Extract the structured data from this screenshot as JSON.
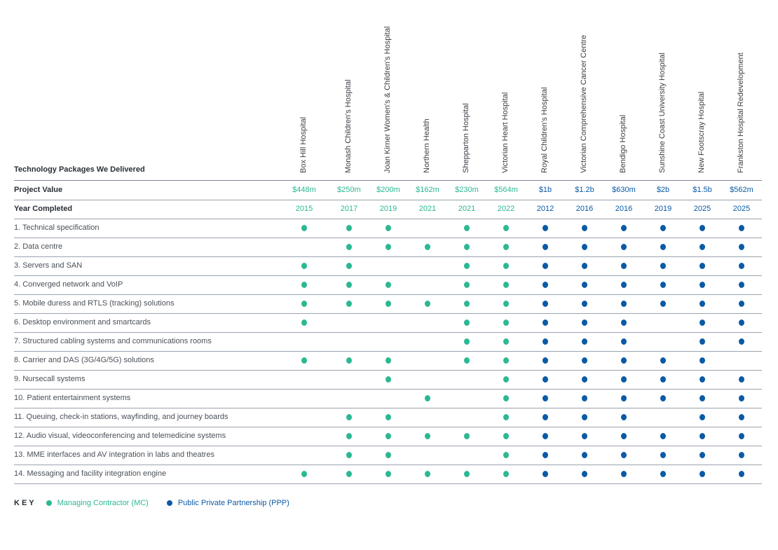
{
  "title": "Technology Packages We Delivered",
  "colors": {
    "mc": "#2bb893",
    "ppp": "#0a5aa6"
  },
  "projects": [
    {
      "name": "Box Hill Hospital",
      "value": "$448m",
      "year": "2015",
      "type": "mc"
    },
    {
      "name": "Monash Children's Hospital",
      "value": "$250m",
      "year": "2017",
      "type": "mc"
    },
    {
      "name": "Joan Kirner Women's & Children's Hospital",
      "value": "$200m",
      "year": "2019",
      "type": "mc"
    },
    {
      "name": "Northern Health",
      "value": "$162m",
      "year": "2021",
      "type": "mc"
    },
    {
      "name": "Shepparton Hospital",
      "value": "$230m",
      "year": "2021",
      "type": "mc"
    },
    {
      "name": "Victorian Heart Hospital",
      "value": "$564m",
      "year": "2022",
      "type": "mc"
    },
    {
      "name": "Royal Children's Hospital",
      "value": "$1b",
      "year": "2012",
      "type": "ppp"
    },
    {
      "name": "Victorian Comprehensive Cancer Centre",
      "value": "$1.2b",
      "year": "2016",
      "type": "ppp"
    },
    {
      "name": "Bendigo Hospital",
      "value": "$630m",
      "year": "2016",
      "type": "ppp"
    },
    {
      "name": "Sunshine Coast University Hospital",
      "value": "$2b",
      "year": "2019",
      "type": "ppp"
    },
    {
      "name": "New Footscray Hospital",
      "value": "$1.5b",
      "year": "2025",
      "type": "ppp"
    },
    {
      "name": "Frankston Hospital Redevelopment",
      "value": "$562m",
      "year": "2025",
      "type": "ppp"
    }
  ],
  "row_labels": {
    "value": "Project Value",
    "year": "Year Completed"
  },
  "packages": [
    {
      "label": "1. Technical specification",
      "delivered": [
        1,
        1,
        1,
        0,
        1,
        1,
        1,
        1,
        1,
        1,
        1,
        1
      ]
    },
    {
      "label": "2. Data centre",
      "delivered": [
        0,
        1,
        1,
        1,
        1,
        1,
        1,
        1,
        1,
        1,
        1,
        1
      ]
    },
    {
      "label": "3. Servers and SAN",
      "delivered": [
        1,
        1,
        0,
        0,
        1,
        1,
        1,
        1,
        1,
        1,
        1,
        1
      ]
    },
    {
      "label": "4. Converged network and VoIP",
      "delivered": [
        1,
        1,
        1,
        0,
        1,
        1,
        1,
        1,
        1,
        1,
        1,
        1
      ]
    },
    {
      "label": "5. Mobile duress and RTLS (tracking) solutions",
      "delivered": [
        1,
        1,
        1,
        1,
        1,
        1,
        1,
        1,
        1,
        1,
        1,
        1
      ]
    },
    {
      "label": "6. Desktop environment and smartcards",
      "delivered": [
        1,
        0,
        0,
        0,
        1,
        1,
        1,
        1,
        1,
        0,
        1,
        1
      ]
    },
    {
      "label": "7. Structured cabling systems and communications rooms",
      "delivered": [
        0,
        0,
        0,
        0,
        1,
        1,
        1,
        1,
        1,
        0,
        1,
        1
      ]
    },
    {
      "label": "8. Carrier and DAS (3G/4G/5G) solutions",
      "delivered": [
        1,
        1,
        1,
        0,
        1,
        1,
        1,
        1,
        1,
        1,
        1,
        0
      ]
    },
    {
      "label": "9. Nursecall systems",
      "delivered": [
        0,
        0,
        1,
        0,
        0,
        1,
        1,
        1,
        1,
        1,
        1,
        1
      ]
    },
    {
      "label": "10. Patient entertainment systems",
      "delivered": [
        0,
        0,
        0,
        1,
        0,
        1,
        1,
        1,
        1,
        1,
        1,
        1
      ]
    },
    {
      "label": "11. Queuing, check-in stations, wayfinding, and journey boards",
      "delivered": [
        0,
        1,
        1,
        0,
        0,
        1,
        1,
        1,
        1,
        0,
        1,
        1
      ]
    },
    {
      "label": "12. Audio visual, videoconferencing and telemedicine systems",
      "delivered": [
        0,
        1,
        1,
        1,
        1,
        1,
        1,
        1,
        1,
        1,
        1,
        1
      ]
    },
    {
      "label": "13. MME interfaces and AV integration in labs and theatres",
      "delivered": [
        0,
        1,
        1,
        0,
        0,
        1,
        1,
        1,
        1,
        1,
        1,
        1
      ]
    },
    {
      "label": "14. Messaging and facility integration engine",
      "delivered": [
        1,
        1,
        1,
        1,
        1,
        1,
        1,
        1,
        1,
        1,
        1,
        1
      ]
    }
  ],
  "key": {
    "label": "KEY",
    "mc": "Managing Contractor (MC)",
    "ppp": "Public Private Partnership (PPP)"
  }
}
